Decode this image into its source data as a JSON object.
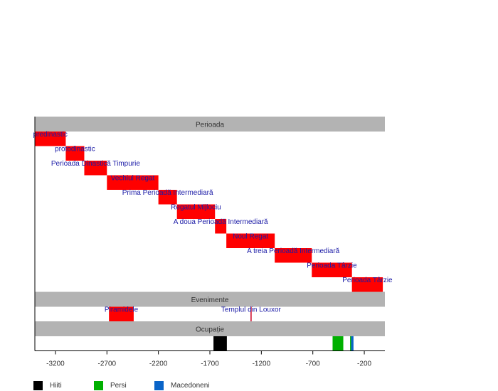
{
  "chart_data": {
    "type": "timeline",
    "title": "",
    "xlabel": "",
    "ylabel": "",
    "xlim": [
      -3400,
      0
    ],
    "xticks": [
      -3200,
      -2700,
      -2200,
      -1700,
      -1200,
      -700,
      -200
    ],
    "xtick_labels": [
      "-3200",
      "-2700",
      "-2200",
      "-1700",
      "-1200",
      "-700",
      "-200"
    ],
    "grid": false,
    "sections": [
      {
        "title": "Perioada",
        "layout": "staircase",
        "bars": [
          {
            "label": "predinastic",
            "start": -3400,
            "end": -3100,
            "color": "#ff0000"
          },
          {
            "label": "protodinastic",
            "start": -3100,
            "end": -2920,
            "color": "#ff0000"
          },
          {
            "label": "Perioada Dinastică Timpurie",
            "start": -2920,
            "end": -2700,
            "color": "#ff0000"
          },
          {
            "label": "Vechiul Regat",
            "start": -2700,
            "end": -2200,
            "color": "#ff0000"
          },
          {
            "label": "Prima Perioadă Intermediară",
            "start": -2200,
            "end": -2020,
            "color": "#ff0000"
          },
          {
            "label": "Regatul Mijlociu",
            "start": -2020,
            "end": -1650,
            "color": "#ff0000"
          },
          {
            "label": "A doua Perioadă Intermediară",
            "start": -1650,
            "end": -1540,
            "color": "#ff0000"
          },
          {
            "label": "Noul Regat",
            "start": -1540,
            "end": -1070,
            "color": "#ff0000"
          },
          {
            "label": "A treia Perioadă Intermediară",
            "start": -1070,
            "end": -710,
            "color": "#ff0000"
          },
          {
            "label": "Perioada Târzie",
            "start": -710,
            "end": -320,
            "color": "#ff0000"
          },
          {
            "label": "Perioada Târzie",
            "start": -320,
            "end": -20,
            "color": "#ff0000"
          }
        ]
      },
      {
        "title": "Evenimente",
        "layout": "single-row",
        "bars": [
          {
            "label": "Piramidele",
            "start": -2680,
            "end": -2440,
            "color": "#ff0000"
          },
          {
            "label": "Templul din Louxor",
            "start": -1305,
            "end": -1295,
            "color": "#cc0022"
          }
        ]
      },
      {
        "title": "Ocupație",
        "layout": "single-row",
        "bars": [
          {
            "label": "Hiiti",
            "start": -1665,
            "end": -1535,
            "color": "#000000"
          },
          {
            "label": "Persi",
            "start": -508,
            "end": -404,
            "color": "#00b000"
          },
          {
            "label": "Persi",
            "start": -338,
            "end": -332,
            "color": "#00b000"
          },
          {
            "label": "Macedoneni",
            "start": -328,
            "end": -305,
            "color": "#0a64c8"
          }
        ]
      }
    ],
    "legend": {
      "position": "bottom-left",
      "entries": [
        {
          "label": "Hiiti",
          "color": "#000000"
        },
        {
          "label": "Persi",
          "color": "#00b000"
        },
        {
          "label": "Macedoneni",
          "color": "#0a64c8"
        }
      ]
    },
    "colors": {
      "header_bg": "#b3b3b3",
      "label_text": "#1a1aa6",
      "axis": "#000000"
    }
  }
}
